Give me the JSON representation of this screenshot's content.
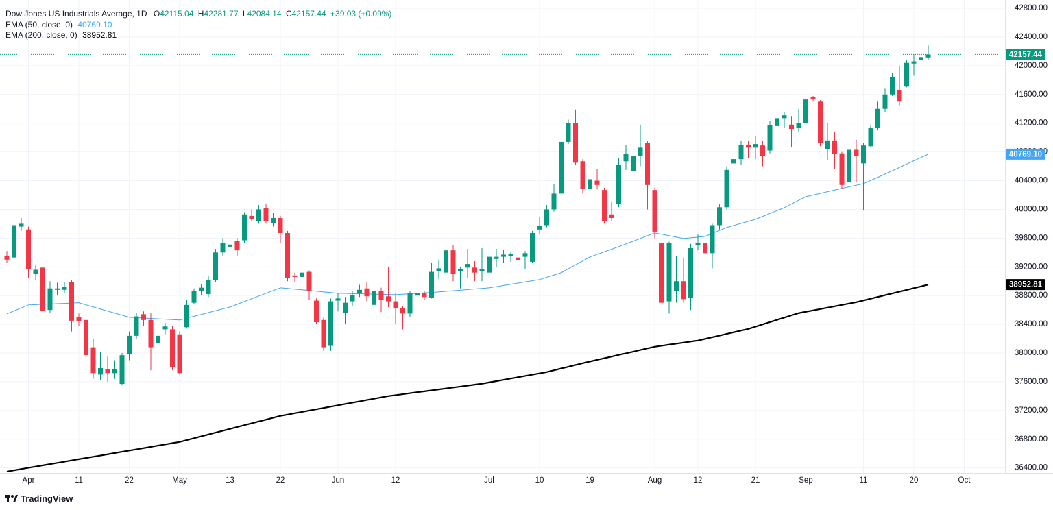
{
  "chart_data": {
    "type": "candlestick",
    "title": "Dow Jones US Industrials Average, 1D",
    "ohlc_letters": [
      "O",
      "H",
      "L",
      "C"
    ],
    "change_label": "+39.03 (+0.09%)",
    "branding": "TradingView",
    "up_color": "#089981",
    "down_color": "#f23645",
    "grid": true,
    "ylim": [
      36330,
      42915
    ],
    "yticks": [
      {
        "value": 36400,
        "label": "36400.00"
      },
      {
        "value": 36800,
        "label": "36800.00"
      },
      {
        "value": 37200,
        "label": "37200.00"
      },
      {
        "value": 37600,
        "label": "37600.00"
      },
      {
        "value": 38000,
        "label": "38000.00"
      },
      {
        "value": 38400,
        "label": "38400.00"
      },
      {
        "value": 38800,
        "label": "38800.00"
      },
      {
        "value": 39200,
        "label": "39200.00"
      },
      {
        "value": 39600,
        "label": "39600.00"
      },
      {
        "value": 40000,
        "label": "40000.00"
      },
      {
        "value": 40400,
        "label": "40400.00"
      },
      {
        "value": 40800,
        "label": "40800.00"
      },
      {
        "value": 41200,
        "label": "41200.00"
      },
      {
        "value": 41600,
        "label": "41600.00"
      },
      {
        "value": 42000,
        "label": "42000.00"
      },
      {
        "value": 42400,
        "label": "42400.00"
      },
      {
        "value": 42800,
        "label": "42800.00"
      }
    ],
    "categories": [
      null,
      null,
      null,
      "Apr",
      null,
      null,
      null,
      null,
      null,
      null,
      "11",
      null,
      null,
      null,
      null,
      null,
      null,
      "22",
      null,
      null,
      null,
      null,
      null,
      null,
      "May",
      null,
      null,
      null,
      null,
      null,
      null,
      "13",
      null,
      null,
      null,
      null,
      null,
      null,
      "22",
      null,
      null,
      null,
      null,
      null,
      null,
      null,
      "Jun",
      null,
      null,
      null,
      null,
      null,
      null,
      null,
      "12",
      null,
      null,
      null,
      null,
      null,
      null,
      null,
      null,
      null,
      null,
      null,
      null,
      "Jul",
      null,
      null,
      null,
      null,
      null,
      null,
      "10",
      null,
      null,
      null,
      null,
      null,
      null,
      "19",
      null,
      null,
      null,
      null,
      null,
      null,
      null,
      null,
      "Aug",
      null,
      null,
      null,
      null,
      null,
      "12",
      null,
      null,
      null,
      null,
      null,
      null,
      null,
      "21",
      null,
      null,
      null,
      null,
      null,
      null,
      "Sep",
      null,
      null,
      null,
      null,
      null,
      null,
      null,
      "11",
      null,
      null,
      null,
      null,
      null,
      null,
      "20",
      null,
      null,
      null,
      null,
      null,
      null,
      "Oct"
    ],
    "open": [
      39350,
      39330,
      39760,
      39720,
      39100,
      39190,
      38600,
      38880,
      38880,
      38990,
      38500,
      38460,
      38080,
      37700,
      37780,
      37720,
      37570,
      37990,
      38240,
      38540,
      38460,
      38140,
      38330,
      38330,
      38260,
      38360,
      38700,
      38860,
      38820,
      39020,
      39400,
      39480,
      39560,
      39570,
      39910,
      39840,
      40020,
      39810,
      39880,
      39670,
      39080,
      39060,
      39130,
      38730,
      38460,
      38100,
      38730,
      38560,
      38720,
      38830,
      38900,
      38670,
      38860,
      38790,
      38720,
      38620,
      38550,
      38800,
      38840,
      38770,
      39140,
      39120,
      39430,
      39140,
      39190,
      39190,
      39140,
      39120,
      39310,
      39340,
      39350,
      39330,
      39340,
      39270,
      39720,
      39780,
      40000,
      40220,
      40940,
      41200,
      40670,
      40290,
      40400,
      40270,
      39930,
      40070,
      40670,
      40530,
      40740,
      40930,
      40270,
      39530,
      38720,
      38860,
      39000,
      38770,
      39500,
      39530,
      39390,
      39780,
      40030,
      40640,
      40700,
      40900,
      40860,
      40890,
      40820,
      41160,
      41270,
      41180,
      41130,
      41200,
      41560,
      41500,
      40840,
      40960,
      40780,
      40380,
      40830,
      40640,
      40880,
      41130,
      41400,
      41600,
      41660,
      41710,
      42030,
      42080,
      42115.04,
      null,
      null,
      null,
      null,
      null
    ],
    "high": [
      39420,
      39860,
      39880,
      39760,
      39230,
      39410,
      39000,
      38980,
      38990,
      39020,
      38550,
      38520,
      38200,
      38020,
      37950,
      37900,
      38000,
      38300,
      38560,
      38580,
      38560,
      38300,
      38420,
      38380,
      38300,
      38740,
      38900,
      38960,
      39080,
      39450,
      39600,
      39620,
      39600,
      39960,
      40000,
      40060,
      40080,
      39950,
      39910,
      39700,
      39120,
      39160,
      39150,
      38760,
      38500,
      38760,
      38830,
      38780,
      38870,
      38950,
      38990,
      38960,
      38910,
      39200,
      38830,
      38650,
      38860,
      38870,
      38860,
      39250,
      39300,
      39580,
      39500,
      39200,
      39450,
      39280,
      39460,
      39420,
      39450,
      39440,
      39410,
      39500,
      39420,
      39700,
      39900,
      40060,
      40350,
      40980,
      41250,
      41390,
      40700,
      40520,
      40560,
      40300,
      40100,
      40720,
      40900,
      40820,
      41180,
      40950,
      40300,
      39700,
      39550,
      39350,
      39330,
      39520,
      39650,
      39600,
      39800,
      40070,
      40600,
      40770,
      40950,
      40950,
      41020,
      40950,
      41230,
      41380,
      41350,
      41300,
      41400,
      41580,
      41580,
      41520,
      41200,
      41080,
      40800,
      40900,
      40970,
      40920,
      41180,
      41500,
      41680,
      41900,
      41990,
      42080,
      42160,
      42180,
      42281.77,
      null,
      null,
      null,
      null,
      null
    ],
    "low": [
      39260,
      39320,
      39700,
      39050,
      39020,
      38560,
      38560,
      38800,
      38830,
      38300,
      38380,
      37950,
      37640,
      37620,
      37600,
      37640,
      37550,
      37900,
      38200,
      38380,
      37760,
      38000,
      38260,
      37760,
      37700,
      38340,
      38680,
      38800,
      38780,
      38990,
      39350,
      39390,
      39350,
      39530,
      39830,
      39800,
      39800,
      39760,
      39530,
      39000,
      38990,
      39000,
      38740,
      38400,
      38030,
      38030,
      38580,
      38400,
      38650,
      38780,
      38720,
      38600,
      38570,
      38640,
      38400,
      38330,
      38500,
      38740,
      38740,
      38760,
      39030,
      39050,
      39000,
      38900,
      39050,
      39000,
      39000,
      39050,
      39200,
      39250,
      39270,
      39190,
      39170,
      39260,
      39650,
      39750,
      39970,
      40200,
      40910,
      40620,
      40220,
      40250,
      40280,
      39800,
      39840,
      40030,
      40550,
      40500,
      40600,
      40000,
      39600,
      38390,
      38550,
      38700,
      38700,
      38600,
      39430,
      39220,
      39180,
      39720,
      40000,
      40560,
      40620,
      40720,
      40700,
      40600,
      40780,
      41060,
      41130,
      40870,
      41080,
      41140,
      41500,
      40880,
      40690,
      40560,
      40290,
      40350,
      40380,
      39990,
      40860,
      41100,
      41350,
      41580,
      41450,
      41700,
      41860,
      41950,
      42084.14,
      null,
      null,
      null,
      null,
      null
    ],
    "close": [
      39300,
      39780,
      39800,
      39170,
      39160,
      38590,
      38900,
      38900,
      38920,
      38450,
      38440,
      37970,
      37720,
      37790,
      37720,
      37780,
      37970,
      38240,
      38510,
      38460,
      38080,
      38240,
      38370,
      37800,
      37720,
      38670,
      38860,
      38910,
      39020,
      39400,
      39530,
      39510,
      39430,
      39930,
      39860,
      40000,
      39840,
      39880,
      39670,
      39050,
      39060,
      39120,
      38860,
      38430,
      38080,
      38720,
      38760,
      38700,
      38810,
      38880,
      38790,
      38860,
      38740,
      38720,
      38620,
      38550,
      38830,
      38840,
      38780,
      39130,
      39180,
      39430,
      39100,
      39170,
      39240,
      39120,
      39170,
      39340,
      39340,
      39370,
      39380,
      39290,
      39390,
      39670,
      39770,
      40000,
      40220,
      40940,
      41200,
      40650,
      40290,
      40420,
      40340,
      39840,
      39880,
      40620,
      40770,
      40740,
      40860,
      40340,
      39690,
      38700,
      39530,
      39000,
      38750,
      39460,
      39530,
      39390,
      39780,
      40030,
      40550,
      40700,
      40900,
      40860,
      40910,
      40740,
      41170,
      41270,
      41310,
      41120,
      41200,
      41530,
      41540,
      40930,
      40960,
      40770,
      40340,
      40830,
      40740,
      40890,
      41130,
      41400,
      41600,
      41840,
      41500,
      42040,
      42060,
      42120,
      42157.44,
      null,
      null,
      null,
      null,
      null
    ],
    "series": [
      {
        "name": "EMA (50, close, 0)",
        "color": "#42a5f5",
        "last_label": "40769.10",
        "values": [
          38546,
          38587,
          38629,
          38670,
          38674,
          38679,
          38683,
          38687,
          38691,
          38696,
          38700,
          38671,
          38642,
          38613,
          38584,
          38556,
          38527,
          38498,
          38493,
          38487,
          38482,
          38476,
          38471,
          38465,
          38460,
          38486,
          38512,
          38537,
          38563,
          38589,
          38615,
          38641,
          38679,
          38717,
          38755,
          38794,
          38832,
          38870,
          38908,
          38899,
          38889,
          38880,
          38870,
          38861,
          38851,
          38842,
          38832,
          38830,
          38827,
          38825,
          38822,
          38820,
          38818,
          38815,
          38813,
          38819,
          38826,
          38832,
          38838,
          38845,
          38851,
          38859,
          38867,
          38875,
          38884,
          38892,
          38900,
          38908,
          38924,
          38941,
          38957,
          38974,
          38990,
          39007,
          39023,
          39055,
          39086,
          39118,
          39173,
          39228,
          39283,
          39338,
          39374,
          39409,
          39445,
          39481,
          39519,
          39557,
          39596,
          39634,
          39672,
          39653,
          39634,
          39614,
          39595,
          39605,
          39614,
          39624,
          39665,
          39707,
          39748,
          39777,
          39805,
          39834,
          39862,
          39903,
          39943,
          39984,
          40024,
          40075,
          40126,
          40177,
          40200,
          40223,
          40246,
          40269,
          40292,
          40314,
          40336,
          40358,
          40403,
          40447,
          40492,
          40538,
          40584,
          40631,
          40677,
          40723,
          40769.1,
          null,
          null,
          null,
          null,
          null
        ]
      },
      {
        "name": "EMA (200, close, 0)",
        "color": "#000000",
        "last_label": "38952.81",
        "values": [
          36350,
          36367,
          36384,
          36402,
          36419,
          36436,
          36453,
          36470,
          36487,
          36505,
          36522,
          36539,
          36556,
          36573,
          36590,
          36608,
          36625,
          36642,
          36659,
          36676,
          36693,
          36711,
          36728,
          36745,
          36762,
          36788,
          36814,
          36840,
          36866,
          36892,
          36918,
          36944,
          36970,
          36996,
          37021,
          37047,
          37073,
          37099,
          37125,
          37143,
          37162,
          37180,
          37199,
          37217,
          37235,
          37254,
          37272,
          37291,
          37309,
          37327,
          37346,
          37364,
          37383,
          37401,
          37414,
          37427,
          37441,
          37454,
          37467,
          37480,
          37493,
          37507,
          37520,
          37533,
          37546,
          37560,
          37573,
          37591,
          37609,
          37627,
          37645,
          37663,
          37681,
          37699,
          37717,
          37735,
          37760,
          37785,
          37809,
          37834,
          37859,
          37882,
          37905,
          37928,
          37951,
          37974,
          37996,
          38019,
          38042,
          38065,
          38088,
          38102,
          38117,
          38131,
          38145,
          38160,
          38174,
          38197,
          38220,
          38243,
          38267,
          38290,
          38313,
          38336,
          38367,
          38399,
          38430,
          38462,
          38493,
          38525,
          38556,
          38575,
          38594,
          38613,
          38632,
          38651,
          38670,
          38689,
          38708,
          38732,
          38757,
          38781,
          38806,
          38830,
          38855,
          38879,
          38904,
          38928,
          38952.81,
          null,
          null,
          null,
          null,
          null
        ]
      }
    ]
  }
}
